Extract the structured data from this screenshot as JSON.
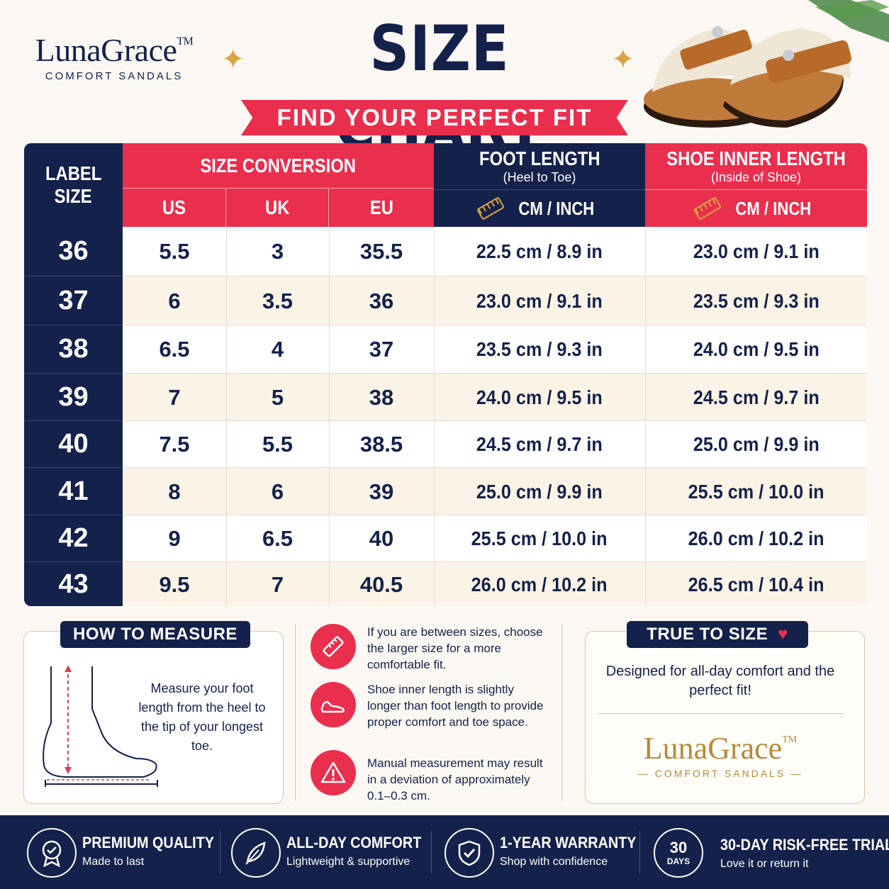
{
  "brand": {
    "name": "LunaGrace",
    "tm": "TM",
    "tagline": "COMFORT SANDALS"
  },
  "header": {
    "title": "SIZE CHART",
    "subtitle": "FIND YOUR PERFECT FIT"
  },
  "colors": {
    "navy": "#14214a",
    "red": "#ea2e4d",
    "gold": "#d9a441",
    "cream": "#fbf8f3"
  },
  "table": {
    "label_header": [
      "LABEL",
      "SIZE"
    ],
    "conversion_header": "SIZE CONVERSION",
    "conversion_columns": [
      "US",
      "UK",
      "EU"
    ],
    "foot_length_header": "FOOT LENGTH",
    "foot_length_note": "(Heel to Toe)",
    "inner_length_header": "SHOE INNER LENGTH",
    "inner_length_note": "(Inside of Shoe)",
    "unit_label": "CM / INCH",
    "rows": [
      {
        "label": "36",
        "us": "5.5",
        "uk": "3",
        "eu": "35.5",
        "foot": "22.5 cm / 8.9 in",
        "inner": "23.0 cm / 9.1 in"
      },
      {
        "label": "37",
        "us": "6",
        "uk": "3.5",
        "eu": "36",
        "foot": "23.0 cm / 9.1 in",
        "inner": "23.5 cm / 9.3 in"
      },
      {
        "label": "38",
        "us": "6.5",
        "uk": "4",
        "eu": "37",
        "foot": "23.5 cm / 9.3 in",
        "inner": "24.0 cm / 9.5 in"
      },
      {
        "label": "39",
        "us": "7",
        "uk": "5",
        "eu": "38",
        "foot": "24.0 cm / 9.5 in",
        "inner": "24.5 cm / 9.7 in"
      },
      {
        "label": "40",
        "us": "7.5",
        "uk": "5.5",
        "eu": "38.5",
        "foot": "24.5 cm / 9.7 in",
        "inner": "25.0 cm / 9.9 in"
      },
      {
        "label": "41",
        "us": "8",
        "uk": "6",
        "eu": "39",
        "foot": "25.0 cm / 9.9 in",
        "inner": "25.5 cm / 10.0 in"
      },
      {
        "label": "42",
        "us": "9",
        "uk": "6.5",
        "eu": "40",
        "foot": "25.5 cm / 10.0 in",
        "inner": "26.0 cm / 10.2 in"
      },
      {
        "label": "43",
        "us": "9.5",
        "uk": "7",
        "eu": "40.5",
        "foot": "26.0 cm / 10.2 in",
        "inner": "26.5 cm / 10.4 in"
      }
    ]
  },
  "how_to_measure": {
    "title": "HOW TO MEASURE",
    "text": "Measure your foot length from the heel to the tip of your longest toe."
  },
  "tips": [
    {
      "icon": "ruler-icon",
      "text": "If you are between sizes, choose the larger size for a more comfortable fit."
    },
    {
      "icon": "shoe-icon",
      "text": "Shoe inner length is slightly longer than foot length to provide proper comfort and toe space."
    },
    {
      "icon": "warning-icon",
      "text": "Manual measurement may result in a deviation of approximately 0.1–0.3 cm."
    }
  ],
  "true_to_size": {
    "title": "TRUE TO SIZE",
    "text": "Designed for all-day comfort and the perfect fit!"
  },
  "footer": [
    {
      "icon": "badge-check-icon",
      "title": "PREMIUM QUALITY",
      "sub": "Made to last"
    },
    {
      "icon": "feather-icon",
      "title": "ALL-DAY COMFORT",
      "sub": "Lightweight & supportive"
    },
    {
      "icon": "shield-check-icon",
      "title": "1-YEAR WARRANTY",
      "sub": "Shop with confidence"
    },
    {
      "icon": "30-days-icon",
      "icon_num": "30",
      "icon_word": "DAYS",
      "title": "30-DAY RISK-FREE TRIAL",
      "sub": "Love it or return it"
    }
  ]
}
